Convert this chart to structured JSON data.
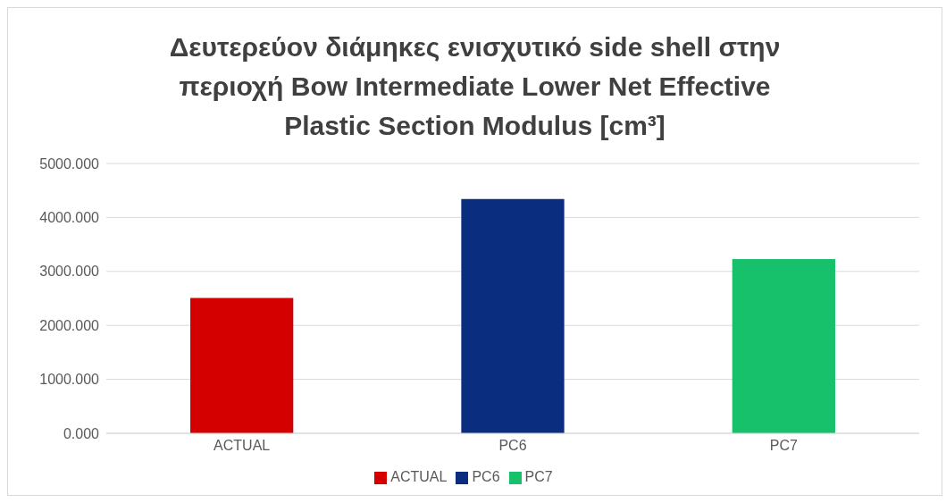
{
  "chart_data": {
    "type": "bar",
    "title": "Δευτερεύον διάμηκες ενισχυτικό side shell στην περιοχή Bow Intermediate Lower Net Effective Plastic Section Modulus [cm³]",
    "categories": [
      "ACTUAL",
      "PC6",
      "PC7"
    ],
    "series": [
      {
        "name": "ACTUAL",
        "color": "#d40000",
        "values": [
          2510,
          null,
          null
        ]
      },
      {
        "name": "PC6",
        "color": "#0b2d80",
        "values": [
          null,
          4340,
          null
        ]
      },
      {
        "name": "PC7",
        "color": "#17c06a",
        "values": [
          null,
          null,
          3230
        ]
      }
    ],
    "stacked": true,
    "ylim": [
      0,
      5000
    ],
    "yticks": [
      {
        "value": 0,
        "label": "0.000"
      },
      {
        "value": 1000,
        "label": "1000.000"
      },
      {
        "value": 2000,
        "label": "2000.000"
      },
      {
        "value": 3000,
        "label": "3000.000"
      },
      {
        "value": 4000,
        "label": "4000.000"
      },
      {
        "value": 5000,
        "label": "5000.000"
      }
    ],
    "grid": "y",
    "legend": "bottom"
  }
}
